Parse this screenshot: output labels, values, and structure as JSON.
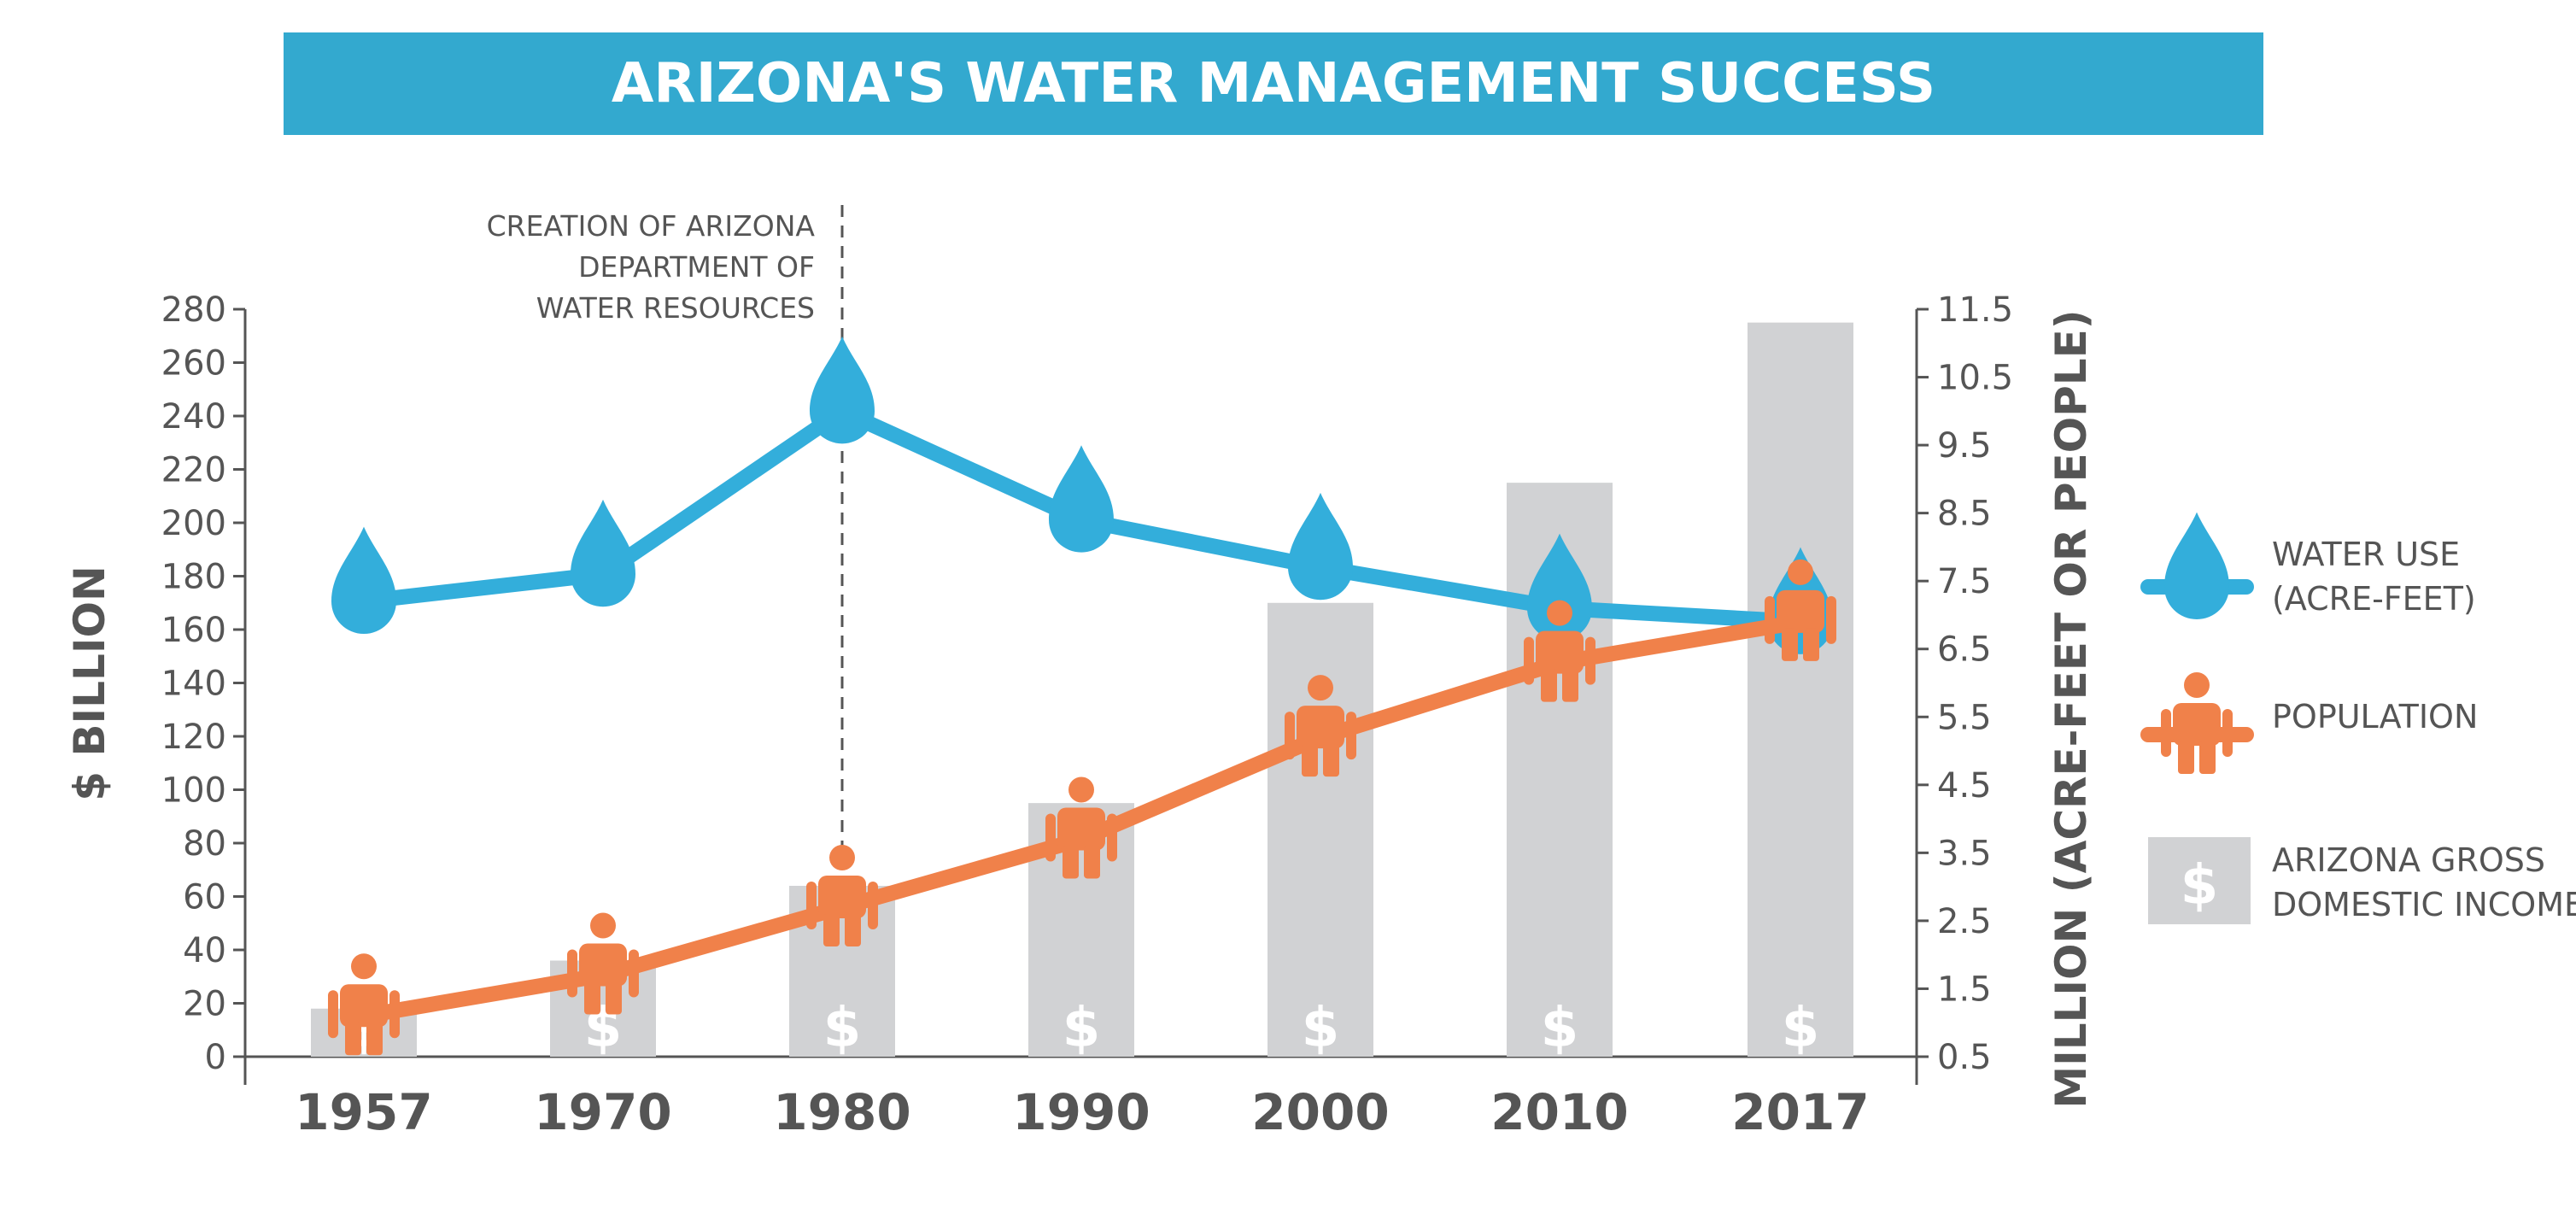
{
  "title": "ARIZONA'S WATER MANAGEMENT SUCCESS",
  "colors": {
    "title_bg": "#33a9cf",
    "water": "#33aedb",
    "population": "#f0814a",
    "income": "#d1d2d4",
    "text": "#555555"
  },
  "chart_data": {
    "type": "bar",
    "categories": [
      "1957",
      "1970",
      "1980",
      "1990",
      "2000",
      "2010",
      "2017"
    ],
    "left_axis": {
      "label": "$ BILLION",
      "ylim": [
        0,
        280
      ],
      "ticks": [
        "0",
        "20",
        "40",
        "60",
        "80",
        "100",
        "120",
        "140",
        "160",
        "180",
        "200",
        "220",
        "240",
        "260",
        "280"
      ]
    },
    "right_axis": {
      "label": "MILLION (ACRE-FEET OR PEOPLE)",
      "ylim": [
        0.5,
        11.5
      ],
      "ticks": [
        "0.5",
        "1.5",
        "2.5",
        "3.5",
        "4.5",
        "5.5",
        "6.5",
        "7.5",
        "8.5",
        "9.5",
        "10.5",
        "11.5"
      ]
    },
    "series": [
      {
        "name": "ARIZONA GROSS DOMESTIC INCOME",
        "type": "bar",
        "axis": "left",
        "values": [
          18,
          36,
          64,
          95,
          170,
          215,
          275
        ]
      },
      {
        "name": "WATER USE (ACRE-FEET)",
        "type": "line",
        "axis": "right",
        "values": [
          7.2,
          7.6,
          10.0,
          8.4,
          7.7,
          7.1,
          6.9
        ]
      },
      {
        "name": "POPULATION",
        "type": "line",
        "axis": "right",
        "values": [
          1.1,
          1.7,
          2.7,
          3.7,
          5.2,
          6.3,
          6.9
        ]
      }
    ],
    "annotation": {
      "lines": [
        "CREATION OF ARIZONA",
        "DEPARTMENT OF",
        "WATER RESOURCES"
      ],
      "category": "1980"
    },
    "legend": {
      "placement": "right",
      "items": [
        {
          "icon": "water-drop-icon",
          "lines": [
            "WATER USE",
            "(ACRE-FEET)"
          ]
        },
        {
          "icon": "person-icon",
          "lines": [
            "POPULATION"
          ]
        },
        {
          "icon": "dollar-icon",
          "lines": [
            "ARIZONA GROSS",
            "DOMESTIC INCOME"
          ]
        }
      ]
    },
    "grid": false
  }
}
